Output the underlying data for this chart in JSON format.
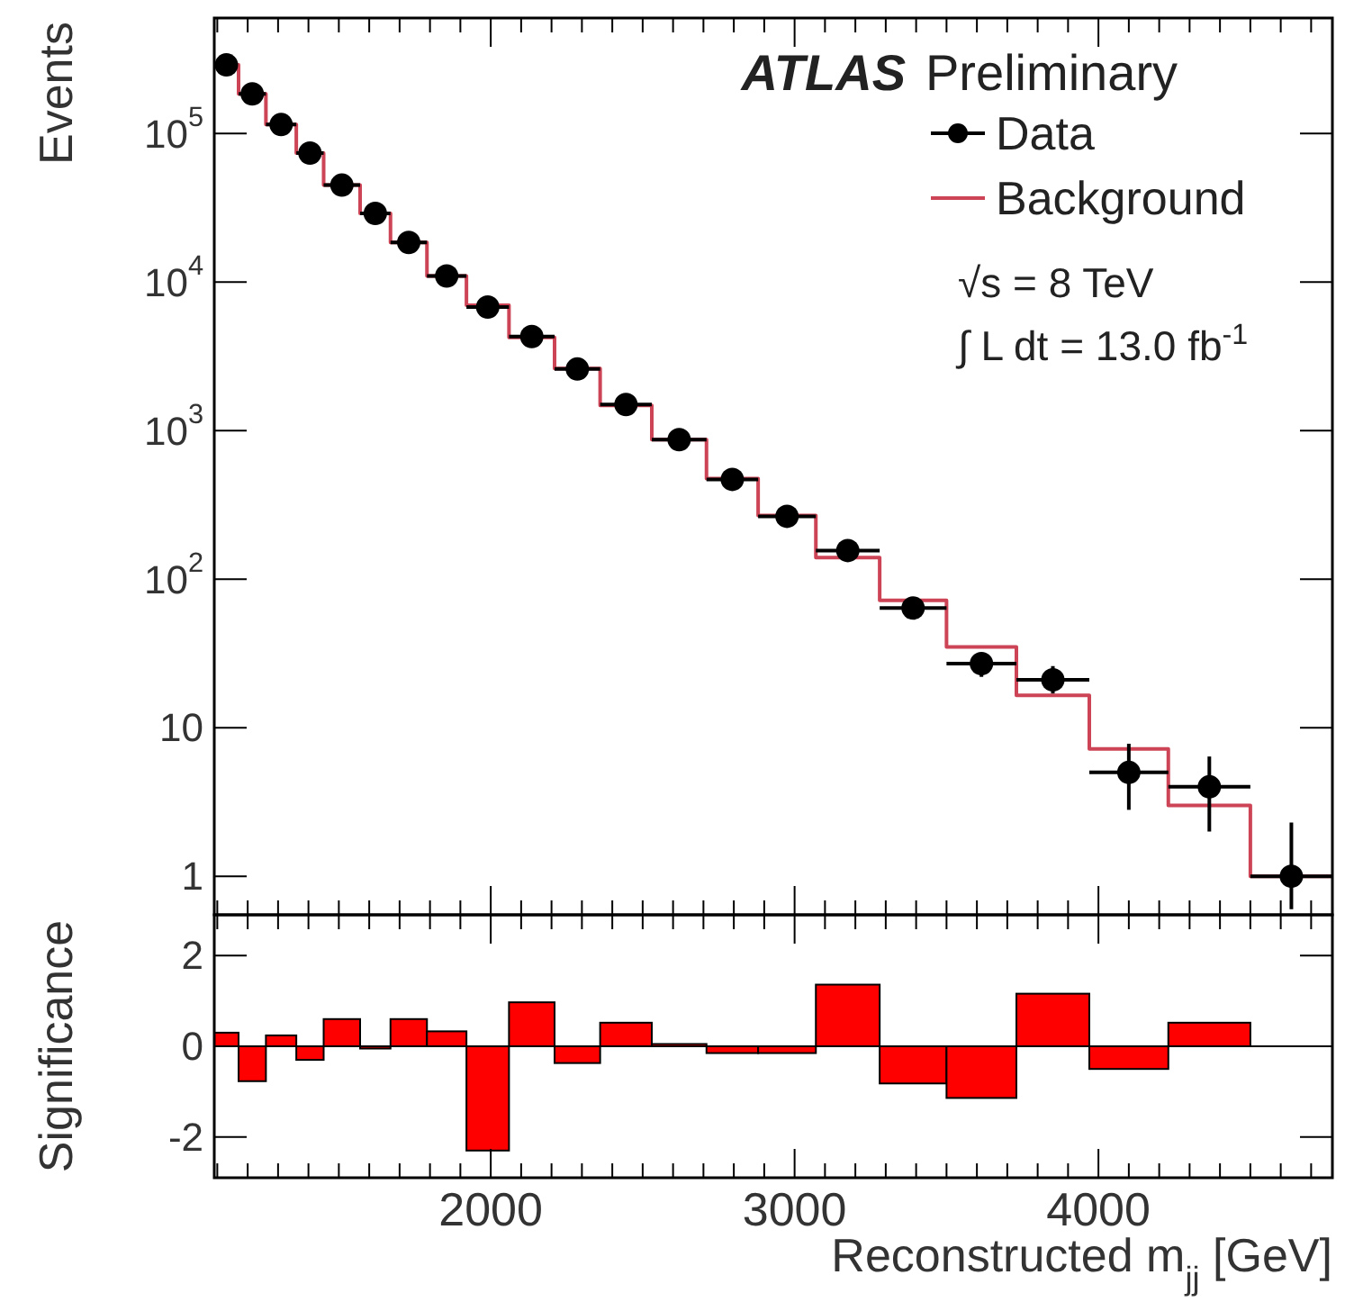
{
  "chart_data": [
    {
      "type": "scatter",
      "ylabel": "Events",
      "log": true,
      "legend": "top right",
      "marker": "circle",
      "tick_labels": "y",
      "annotations": [
        "ATLAS",
        "Preliminary",
        "√s = 8 TeV",
        "∫ L dt = 13.0 fb$^{-1}$"
      ],
      "xlim": [
        1090,
        4770
      ],
      "ylim": [
        0.55,
        600000
      ],
      "xticks": [
        {
          "value": 1100,
          "label": null
        },
        {
          "value": 1200,
          "label": null
        },
        {
          "value": 1300,
          "label": null
        },
        {
          "value": 1400,
          "label": null
        },
        {
          "value": 1500,
          "label": null
        },
        {
          "value": 1600,
          "label": null
        },
        {
          "value": 1700,
          "label": null
        },
        {
          "value": 1800,
          "label": null
        },
        {
          "value": 1900,
          "label": null
        },
        2000,
        {
          "value": 2100,
          "label": null
        },
        {
          "value": 2200,
          "label": null
        },
        {
          "value": 2300,
          "label": null
        },
        {
          "value": 2400,
          "label": null
        },
        {
          "value": 2500,
          "label": null
        },
        {
          "value": 2600,
          "label": null
        },
        {
          "value": 2700,
          "label": null
        },
        {
          "value": 2800,
          "label": null
        },
        {
          "value": 2900,
          "label": null
        },
        3000,
        {
          "value": 3100,
          "label": null
        },
        {
          "value": 3200,
          "label": null
        },
        {
          "value": 3300,
          "label": null
        },
        {
          "value": 3400,
          "label": null
        },
        {
          "value": 3500,
          "label": null
        },
        {
          "value": 3600,
          "label": null
        },
        {
          "value": 3700,
          "label": null
        },
        {
          "value": 3800,
          "label": null
        },
        {
          "value": 3900,
          "label": null
        },
        4000,
        {
          "value": 4100,
          "label": null
        },
        {
          "value": 4200,
          "label": null
        },
        {
          "value": 4300,
          "label": null
        },
        {
          "value": 4400,
          "label": null
        },
        {
          "value": 4500,
          "label": null
        },
        {
          "value": 4600,
          "label": null
        },
        {
          "value": 4700,
          "label": null
        }
      ],
      "yticks": [
        1,
        10,
        {
          "value": 100,
          "label": "10$^{2}$"
        },
        {
          "value": 1000,
          "label": "10$^{3}$"
        },
        {
          "value": 10000,
          "label": "10$^{4}$"
        },
        {
          "value": 100000,
          "label": "10$^{5}$"
        }
      ],
      "series": [
        {
          "name": "Data",
          "type": "scatter",
          "color": "#000000",
          "x": [
            1130,
            1215,
            1310,
            1405,
            1510,
            1620,
            1730,
            1855,
            1990,
            2135,
            2285,
            2445,
            2620,
            2795,
            2975,
            3175,
            3390,
            3615,
            3850,
            4100,
            4365,
            4635
          ],
          "values": [
            290000,
            185000,
            115000,
            74000,
            45000,
            29000,
            18500,
            11000,
            6800,
            4300,
            2600,
            1500,
            870,
            470,
            265,
            156,
            64,
            27,
            21,
            5,
            4,
            1
          ],
          "errors": [
            null,
            null,
            null,
            null,
            null,
            null,
            null,
            null,
            null,
            null,
            null,
            null,
            null,
            null,
            null,
            null,
            null,
            [
              22,
              32
            ],
            [
              17,
              26
            ],
            [
              2.8,
              7.8
            ],
            [
              2,
              6.4
            ],
            [
              0.6,
              2.3
            ]
          ],
          "xerrors": [
            null,
            [
              1170,
              1260
            ],
            [
              1260,
              1360
            ],
            [
              1360,
              1450
            ],
            [
              1450,
              1570
            ],
            [
              1570,
              1670
            ],
            [
              1670,
              1790
            ],
            [
              1790,
              1920
            ],
            [
              1920,
              2060
            ],
            [
              2060,
              2210
            ],
            [
              2210,
              2360
            ],
            [
              2360,
              2530
            ],
            [
              2530,
              2710
            ],
            [
              2710,
              2880
            ],
            [
              2880,
              3070
            ],
            [
              3070,
              3280
            ],
            [
              3280,
              3500
            ],
            [
              3500,
              3730
            ],
            [
              3730,
              3970
            ],
            [
              3970,
              4230
            ],
            [
              4230,
              4500
            ],
            [
              4500,
              4770
            ]
          ]
        },
        {
          "name": "Background",
          "type": "histogram",
          "color": "#cc4455",
          "bins": [
            1090,
            1170,
            1260,
            1360,
            1450,
            1570,
            1670,
            1790,
            1920,
            2060,
            2210,
            2360,
            2530,
            2710,
            2880,
            3070,
            3280,
            3500,
            3730,
            3970,
            4230,
            4500,
            4770
          ],
          "values": [
            290000,
            185000,
            115000,
            74000,
            45000,
            29000,
            18500,
            11000,
            7000,
            4250,
            2620,
            1480,
            870,
            475,
            268,
            140,
            72,
            35,
            16.5,
            7.2,
            3,
            1
          ]
        }
      ]
    },
    {
      "type": "histogram",
      "ylabel": "Significance",
      "xlabel": "Reconstructed m$_{jj}$ [GeV]",
      "color": "#ff0000",
      "bins": [
        1090,
        1170,
        1260,
        1360,
        1450,
        1570,
        1670,
        1790,
        1920,
        2060,
        2210,
        2360,
        2530,
        2710,
        2880,
        3070,
        3280,
        3500,
        3730,
        3970,
        4230,
        4500
      ],
      "values": [
        0.3,
        -0.77,
        0.24,
        -0.3,
        0.6,
        -0.05,
        0.6,
        0.33,
        -2.3,
        0.97,
        -0.37,
        0.52,
        0.05,
        -0.15,
        -0.15,
        1.36,
        -0.82,
        -1.14,
        1.16,
        -0.5,
        0.52
      ],
      "xlim": [
        1090,
        4770
      ],
      "ylim": [
        -2.9,
        2.9
      ],
      "xticks": [
        {
          "value": 1100,
          "label": null
        },
        {
          "value": 1200,
          "label": null
        },
        {
          "value": 1300,
          "label": null
        },
        {
          "value": 1400,
          "label": null
        },
        {
          "value": 1500,
          "label": null
        },
        {
          "value": 1600,
          "label": null
        },
        {
          "value": 1700,
          "label": null
        },
        {
          "value": 1800,
          "label": null
        },
        {
          "value": 1900,
          "label": null
        },
        2000,
        {
          "value": 2100,
          "label": null
        },
        {
          "value": 2200,
          "label": null
        },
        {
          "value": 2300,
          "label": null
        },
        {
          "value": 2400,
          "label": null
        },
        {
          "value": 2500,
          "label": null
        },
        {
          "value": 2600,
          "label": null
        },
        {
          "value": 2700,
          "label": null
        },
        {
          "value": 2800,
          "label": null
        },
        {
          "value": 2900,
          "label": null
        },
        3000,
        {
          "value": 3100,
          "label": null
        },
        {
          "value": 3200,
          "label": null
        },
        {
          "value": 3300,
          "label": null
        },
        {
          "value": 3400,
          "label": null
        },
        {
          "value": 3500,
          "label": null
        },
        {
          "value": 3600,
          "label": null
        },
        {
          "value": 3700,
          "label": null
        },
        {
          "value": 3800,
          "label": null
        },
        {
          "value": 3900,
          "label": null
        },
        4000,
        {
          "value": 4100,
          "label": null
        },
        {
          "value": 4200,
          "label": null
        },
        {
          "value": 4300,
          "label": null
        },
        {
          "value": 4400,
          "label": null
        },
        {
          "value": 4500,
          "label": null
        },
        {
          "value": 4600,
          "label": null
        },
        {
          "value": 4700,
          "label": null
        }
      ],
      "yticks": [
        -2,
        0,
        2
      ],
      "ref_lines": [
        {
          "axis": "y",
          "value": 0,
          "color": "#000000"
        }
      ]
    }
  ]
}
